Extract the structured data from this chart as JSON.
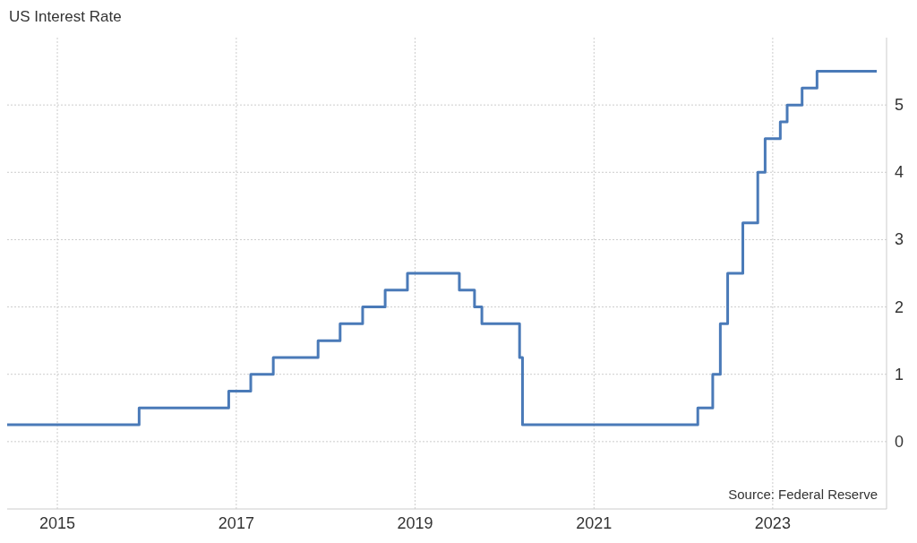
{
  "chart_data": {
    "type": "step",
    "title": "US Interest Rate",
    "x": [
      "2014-06-10",
      "2015-12",
      "2016-12",
      "2017-03",
      "2017-06",
      "2017-12",
      "2018-03",
      "2018-06",
      "2018-09",
      "2018-12",
      "2019-07",
      "2019-09",
      "2019-10",
      "2020-03-03",
      "2020-03-15",
      "2022-03",
      "2022-05",
      "2022-06",
      "2022-07",
      "2022-09",
      "2022-11",
      "2022-12",
      "2023-02",
      "2023-03",
      "2023-05",
      "2023-07",
      "2024-03"
    ],
    "series": [
      {
        "color": "#4a7ab8",
        "values": [
          0.25,
          0.5,
          0.75,
          1.0,
          1.25,
          1.5,
          1.75,
          2.0,
          2.25,
          2.5,
          2.25,
          2.0,
          1.75,
          1.25,
          0.25,
          0.5,
          1.0,
          1.75,
          2.5,
          3.25,
          4.0,
          4.5,
          4.75,
          5.0,
          5.25,
          5.5,
          5.5
        ]
      }
    ],
    "xlim": [
      "2014-06-10",
      "2024-04-10"
    ],
    "xticks": [
      {
        "value": "2015",
        "label": "2015"
      },
      {
        "value": "2017",
        "label": "2017"
      },
      {
        "value": "2019",
        "label": "2019"
      },
      {
        "value": "2021",
        "label": "2021"
      },
      {
        "value": "2023",
        "label": "2023"
      }
    ],
    "ylim": [
      -1,
      6
    ],
    "yticks": [
      0,
      1,
      2,
      3,
      4,
      5
    ],
    "grid": true,
    "marker": "none",
    "line_style": "solid",
    "annotations": [
      "Source: Federal Reserve"
    ]
  }
}
